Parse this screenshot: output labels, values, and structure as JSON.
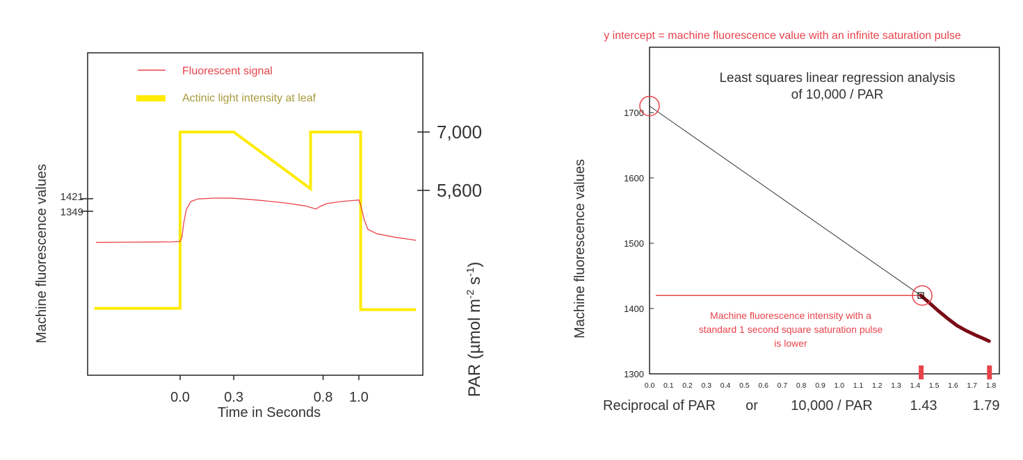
{
  "chart_data": [
    {
      "type": "line",
      "xlabel": "Time in Seconds",
      "ylabel_left": "Machine fluorescence values",
      "ylabel_right_main": "PAR (µmol m",
      "ylabel_right_exp1": "-2",
      "ylabel_right_mid": " s",
      "ylabel_right_exp2": "-1",
      "ylabel_right_end": ")",
      "x_ticks": [
        {
          "value": 0.0,
          "label": "0.0"
        },
        {
          "value": 0.3,
          "label": "0.3"
        },
        {
          "value": 0.8,
          "label": "0.8"
        },
        {
          "value": 1.0,
          "label": "1.0"
        }
      ],
      "xlim": [
        -0.5,
        1.35
      ],
      "left_ticks": [
        {
          "value": 1421,
          "label": "1421"
        },
        {
          "value": 1349,
          "label": "1349"
        }
      ],
      "right_ticks": [
        {
          "value": 7000,
          "label": "7,000"
        },
        {
          "value": 5600,
          "label": "5,600"
        }
      ],
      "legend": [
        {
          "label": "Fluorescent signal",
          "color": "#e8434b",
          "style": "thin"
        },
        {
          "label": "Actinic light intensity at leaf",
          "color": "#a89a3c",
          "swatch": "#ffeb00",
          "style": "thick"
        }
      ],
      "series": [
        {
          "name": "Actinic light intensity at leaf",
          "color": "#ffeb00",
          "unit": "PAR",
          "points": [
            [
              -0.48,
              2770
            ],
            [
              0.0,
              2770
            ],
            [
              0.0,
              7000
            ],
            [
              0.3,
              7000
            ],
            [
              0.73,
              5640
            ],
            [
              0.73,
              7000
            ],
            [
              1.01,
              7000
            ],
            [
              1.01,
              2740
            ],
            [
              1.32,
              2740
            ]
          ]
        },
        {
          "name": "Fluorescent signal",
          "color": "#e8434b",
          "unit": "fluorescence",
          "points": [
            [
              -0.47,
              1170
            ],
            [
              -0.3,
              1171
            ],
            [
              -0.15,
              1172
            ],
            [
              -0.05,
              1173
            ],
            [
              0.0,
              1175
            ],
            [
              0.01,
              1200
            ],
            [
              0.02,
              1280
            ],
            [
              0.035,
              1360
            ],
            [
              0.06,
              1405
            ],
            [
              0.1,
              1420
            ],
            [
              0.2,
              1425
            ],
            [
              0.3,
              1424
            ],
            [
              0.45,
              1412
            ],
            [
              0.6,
              1395
            ],
            [
              0.7,
              1380
            ],
            [
              0.76,
              1362
            ],
            [
              0.78,
              1375
            ],
            [
              0.82,
              1393
            ],
            [
              0.9,
              1405
            ],
            [
              1.0,
              1414
            ],
            [
              1.01,
              1385
            ],
            [
              1.03,
              1300
            ],
            [
              1.05,
              1245
            ],
            [
              1.1,
              1220
            ],
            [
              1.2,
              1200
            ],
            [
              1.3,
              1185
            ],
            [
              1.32,
              1182
            ]
          ]
        }
      ]
    },
    {
      "type": "scatter",
      "title_line1": "Least squares linear regression analysis",
      "title_line2": "of 10,000 / PAR",
      "top_annotation": "y intercept = machine fluorescence value with an infinite saturation pulse",
      "xlabel_left": "Reciprocal of PAR",
      "xlabel_or": "or",
      "xlabel_mid": "10,000 / PAR",
      "xlabel_v1": "1.43",
      "xlabel_v2": "1.79",
      "ylabel": "Machine fluorescence values",
      "xlim": [
        0.0,
        1.8
      ],
      "ylim": [
        1300,
        1800
      ],
      "x_ticks": [
        {
          "value": 0.0,
          "label": "0.0"
        },
        {
          "value": 0.1,
          "label": "0.1"
        },
        {
          "value": 0.2,
          "label": "0.2"
        },
        {
          "value": 0.3,
          "label": "0.3"
        },
        {
          "value": 0.4,
          "label": "0.4"
        },
        {
          "value": 0.5,
          "label": "0.5"
        },
        {
          "value": 0.6,
          "label": "0.6"
        },
        {
          "value": 0.7,
          "label": "0.7"
        },
        {
          "value": 0.8,
          "label": "0.8"
        },
        {
          "value": 0.9,
          "label": "0.9"
        },
        {
          "value": 1.0,
          "label": "1.0"
        },
        {
          "value": 1.1,
          "label": "1.1"
        },
        {
          "value": 1.2,
          "label": "1.2"
        },
        {
          "value": 1.3,
          "label": "1.3"
        },
        {
          "value": 1.4,
          "label": "1.4"
        },
        {
          "value": 1.5,
          "label": "1.5"
        },
        {
          "value": 1.6,
          "label": "1.6"
        },
        {
          "value": 1.7,
          "label": "1.7"
        },
        {
          "value": 1.8,
          "label": "1.8"
        }
      ],
      "y_ticks": [
        {
          "value": 1300,
          "label": "1300"
        },
        {
          "value": 1400,
          "label": "1400"
        },
        {
          "value": 1500,
          "label": "1500"
        },
        {
          "value": 1600,
          "label": "1600"
        },
        {
          "value": 1700,
          "label": "1700"
        }
      ],
      "regression_line": {
        "x0": 0.0,
        "y0": 1710,
        "x1": 1.43,
        "y1": 1420,
        "color": "#333333"
      },
      "intercept_value": 1710,
      "reference_value": 1420,
      "data_curve": {
        "color": "#7a0a14",
        "points": [
          [
            1.43,
            1420
          ],
          [
            1.47,
            1410
          ],
          [
            1.52,
            1397
          ],
          [
            1.57,
            1385
          ],
          [
            1.62,
            1374
          ],
          [
            1.67,
            1366
          ],
          [
            1.72,
            1359
          ],
          [
            1.76,
            1354
          ],
          [
            1.79,
            1350
          ]
        ]
      },
      "x_markers": [
        1.43,
        1.79
      ],
      "marker_color": "#e8434b",
      "annotation_lines": [
        "Machine fluorescence intensity with a",
        "standard 1 second square saturation pulse",
        "is lower"
      ],
      "annotation_color": "#e8434b"
    }
  ]
}
